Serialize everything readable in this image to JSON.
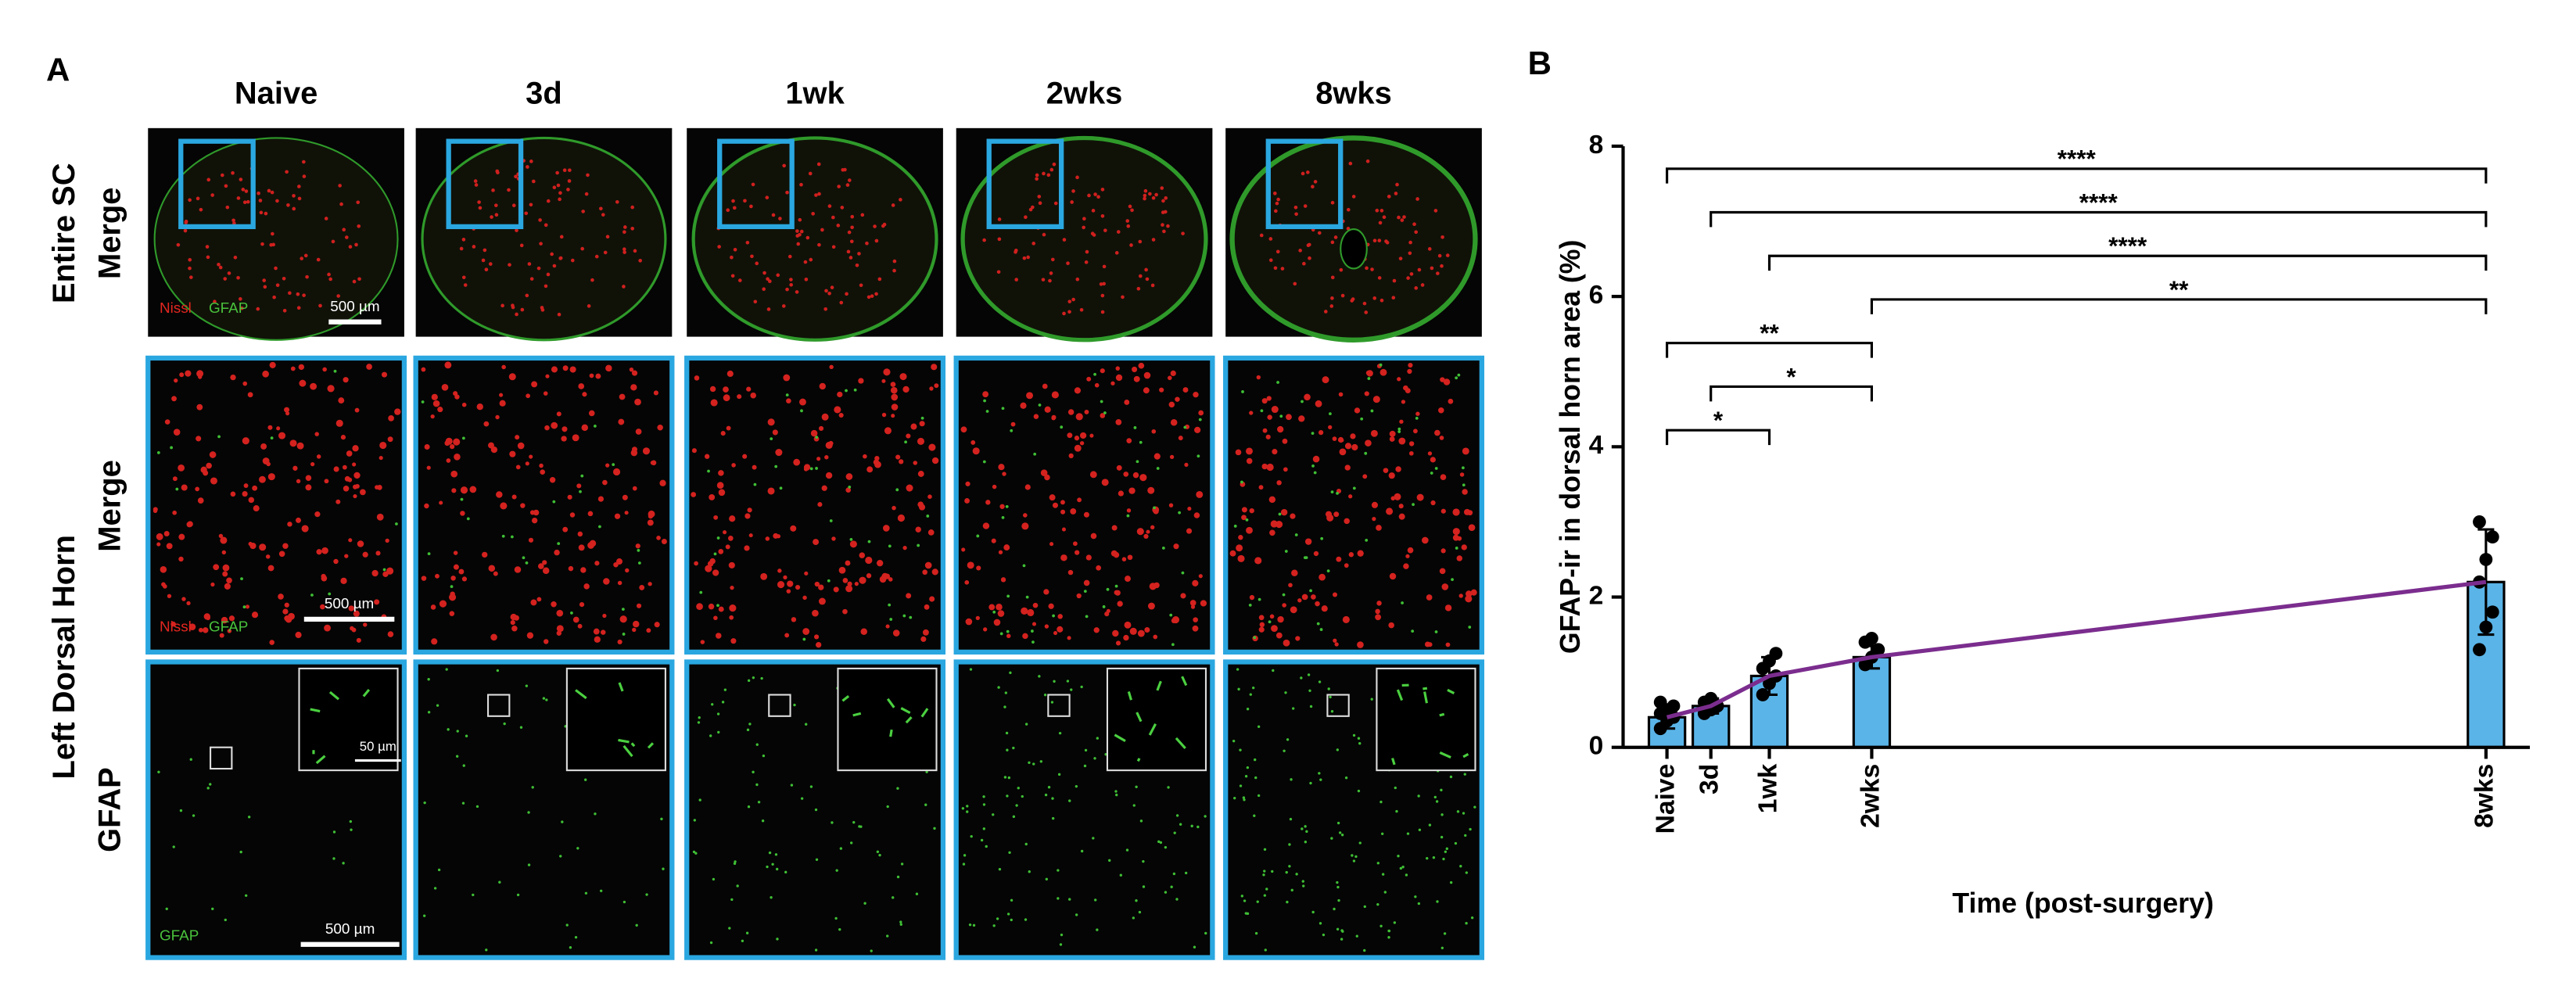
{
  "panel_a": {
    "label": "A",
    "columns": [
      "Naive",
      "3d",
      "1wk",
      "2wks",
      "8wks"
    ],
    "row_groups": [
      "Entire SC",
      "Left Dorsal Horn"
    ],
    "row_labels": [
      "Merge",
      "Merge",
      "GFAP"
    ],
    "image_texts": [
      {
        "stains": [
          "Nissl",
          "GFAP"
        ],
        "scale": "500 µm"
      },
      {
        "stains": [
          "Nissl",
          "GFAP"
        ],
        "scale": "500 µm"
      },
      {
        "stains": [
          "GFAP"
        ],
        "scale": "500 µm",
        "inset_scale": "50 µm"
      }
    ]
  },
  "chart_data": {
    "type": "bar",
    "panel_label": "B",
    "y_label": "GFAP-ir in dorsal horn area (%)",
    "x_label": "Time (post-surgery)",
    "x": [
      0,
      3,
      7,
      14,
      56
    ],
    "values": [
      0.4,
      0.55,
      0.95,
      1.2,
      2.2
    ],
    "errors": [
      0.15,
      0.1,
      0.25,
      0.15,
      0.7
    ],
    "points": [
      [
        0.25,
        0.35,
        0.4,
        0.45,
        0.5,
        0.55,
        0.6
      ],
      [
        0.45,
        0.5,
        0.55,
        0.6,
        0.65
      ],
      [
        0.7,
        0.85,
        0.95,
        1.05,
        1.15,
        1.25
      ],
      [
        1.1,
        1.2,
        1.3,
        1.4,
        1.45
      ],
      [
        1.3,
        1.6,
        1.8,
        2.2,
        2.5,
        2.8,
        3.0
      ]
    ],
    "color": "#5ab4e8",
    "line_color": "#7b2d8e",
    "point_color": "#000000",
    "xlim": [
      -3,
      59
    ],
    "xticks": [
      {
        "value": 0,
        "label": "Naive"
      },
      {
        "value": 3,
        "label": "3d"
      },
      {
        "value": 7,
        "label": "1wk"
      },
      {
        "value": 14,
        "label": "2wks"
      },
      {
        "value": 56,
        "label": "8wks"
      }
    ],
    "ylim": [
      0,
      8
    ],
    "yticks": [
      0,
      2,
      4,
      6,
      8
    ],
    "brackets": [
      {
        "from": 0,
        "to": 56,
        "label": "****"
      },
      {
        "from": 3,
        "to": 56,
        "label": "****"
      },
      {
        "from": 7,
        "to": 56,
        "label": "****"
      },
      {
        "from": 14,
        "to": 56,
        "label": "**"
      },
      {
        "from": 0,
        "to": 14,
        "label": "**"
      },
      {
        "from": 3,
        "to": 14,
        "label": "*"
      },
      {
        "from": 0,
        "to": 7,
        "label": "*"
      }
    ]
  }
}
